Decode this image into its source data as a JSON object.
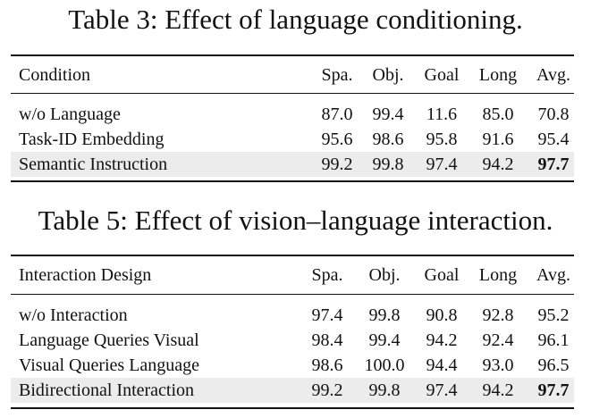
{
  "tables": [
    {
      "caption": "Table 3: Effect of language conditioning.",
      "header": [
        "Condition",
        "Spa.",
        "Obj.",
        "Goal",
        "Long",
        "Avg."
      ],
      "rows": [
        [
          "w/o Language",
          "87.0",
          "99.4",
          "11.6",
          "85.0",
          "70.8"
        ],
        [
          "Task-ID Embedding",
          "95.6",
          "98.6",
          "95.8",
          "91.6",
          "95.4"
        ],
        [
          "Semantic Instruction",
          "99.2",
          "99.8",
          "97.4",
          "94.2",
          "97.7"
        ]
      ],
      "highlight_row": 2,
      "bold_cell": "Avg.",
      "highlight_color": "#ececec"
    },
    {
      "caption": "Table 5: Effect of vision–language interaction.",
      "header": [
        "Interaction Design",
        "Spa.",
        "Obj.",
        "Goal",
        "Long",
        "Avg."
      ],
      "rows": [
        [
          "w/o Interaction",
          "97.4",
          "99.8",
          "90.8",
          "92.8",
          "95.2"
        ],
        [
          "Language Queries Visual",
          "98.4",
          "99.4",
          "94.2",
          "92.4",
          "96.1"
        ],
        [
          "Visual Queries Language",
          "98.6",
          "100.0",
          "94.4",
          "93.0",
          "96.5"
        ],
        [
          "Bidirectional Interaction",
          "99.2",
          "99.8",
          "97.4",
          "94.2",
          "97.7"
        ]
      ],
      "highlight_row": 3,
      "bold_cell": "Avg.",
      "highlight_color": "#ececec"
    }
  ]
}
